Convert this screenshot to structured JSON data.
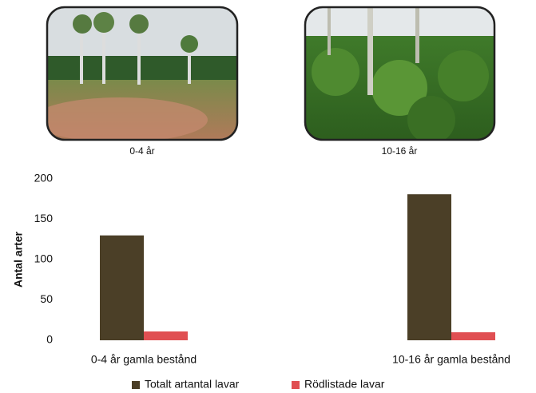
{
  "photos": [
    {
      "caption": "0-4 år"
    },
    {
      "caption": "10-16 år"
    }
  ],
  "chart_data": {
    "type": "bar",
    "y_label": "Antal arter",
    "categories": [
      "0-4 år gamla bestånd",
      "10-16 år gamla bestånd"
    ],
    "series": [
      {
        "name": "Totalt artantal lavar",
        "color": "#4b3f27",
        "values": [
          130,
          181
        ]
      },
      {
        "name": "Rödlistade lavar",
        "color": "#e04f52",
        "values": [
          11,
          10
        ]
      }
    ],
    "ylim": [
      0,
      200
    ],
    "yticks": [
      0,
      50,
      100,
      150,
      200
    ],
    "grid": false
  }
}
